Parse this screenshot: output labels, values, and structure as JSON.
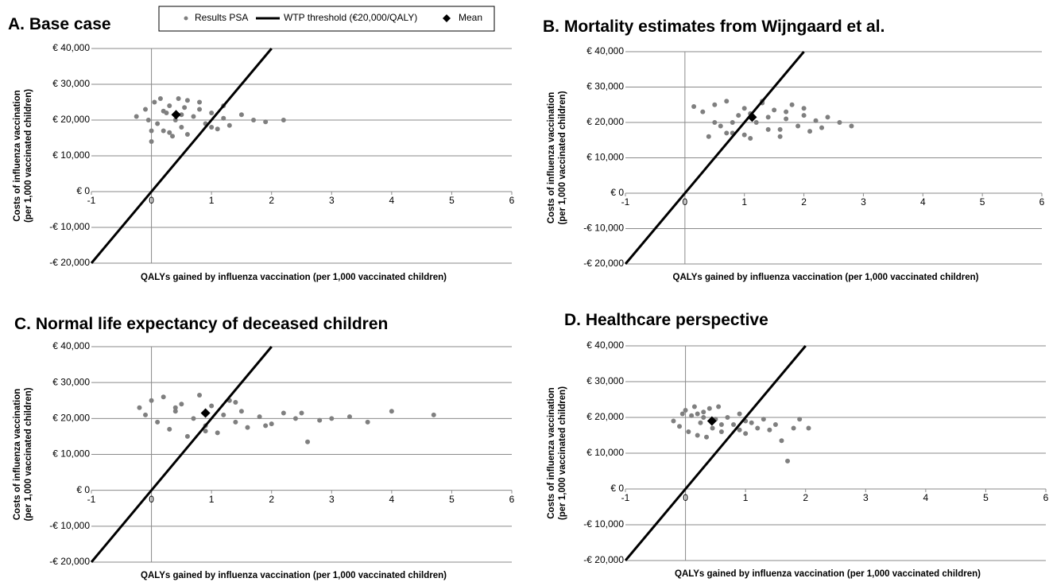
{
  "chart_data": [
    {
      "type": "scatter",
      "title": "A. Base case",
      "xlabel": "QALYs gained by influenza vaccination (per 1,000 vaccinated children)",
      "ylabel": [
        "Costs of influenza vaccination",
        "(per 1,000 vaccinated children)"
      ],
      "xlim": [
        -1,
        6
      ],
      "xticks": [
        -1,
        0,
        1,
        2,
        3,
        4,
        5,
        6
      ],
      "ylim": [
        -20000,
        40000
      ],
      "yticks": [
        {
          "value": -20000,
          "label": "-€ 20,000"
        },
        {
          "value": -10000,
          "label": "-€ 10,000"
        },
        {
          "value": 0,
          "label": "€ 0"
        },
        {
          "value": 10000,
          "label": "€ 10,000"
        },
        {
          "value": 20000,
          "label": "€ 20,000"
        },
        {
          "value": 30000,
          "label": "€ 30,000"
        },
        {
          "value": 40000,
          "label": "€ 40,000"
        }
      ],
      "grid": true,
      "series": [
        {
          "name": "Results PSA",
          "style": "points",
          "color": "#7f7f7f",
          "x": [
            -0.25,
            -0.1,
            0,
            0.05,
            0.1,
            0.15,
            0.2,
            0.25,
            0.3,
            0.35,
            0.4,
            0.45,
            0.5,
            0.55,
            0.6,
            0.7,
            0.8,
            0.9,
            1.0,
            1.1,
            1.2,
            1.3,
            1.5,
            1.7,
            1.9,
            2.2,
            -0.05,
            0.2,
            0.5,
            0.8,
            0.0,
            0.3,
            0.6,
            1.0,
            1.2
          ],
          "values": [
            21000,
            23000,
            14000,
            25000,
            19000,
            26000,
            17000,
            22000,
            24000,
            15500,
            20000,
            26000,
            18000,
            23500,
            16000,
            21000,
            25000,
            19000,
            22000,
            17500,
            20500,
            18500,
            21500,
            20000,
            19500,
            20000,
            20000,
            22500,
            21500,
            23000,
            17000,
            16500,
            25500,
            18000,
            24000
          ]
        },
        {
          "name": "WTP threshold (€20,000/QALY)",
          "style": "line",
          "color": "#000000",
          "x": [
            -1,
            2
          ],
          "values": [
            -20000,
            40000
          ]
        },
        {
          "name": "Mean",
          "style": "diamond",
          "color": "#000000",
          "x": [
            0.41
          ],
          "values": [
            21500
          ]
        }
      ]
    },
    {
      "type": "scatter",
      "title": "B. Mortality estimates from Wijngaard et al.",
      "xlabel": "QALYs gained by influenza vaccination (per 1,000 vaccinated children)",
      "ylabel": [
        "Costs of influenza vaccination",
        "(per 1,000 vaccinated children)"
      ],
      "xlim": [
        -1,
        6
      ],
      "xticks": [
        -1,
        0,
        1,
        2,
        3,
        4,
        5,
        6
      ],
      "ylim": [
        -20000,
        40000
      ],
      "yticks": [
        {
          "value": -20000,
          "label": "-€ 20,000"
        },
        {
          "value": -10000,
          "label": "-€ 10,000"
        },
        {
          "value": 0,
          "label": "€ 0"
        },
        {
          "value": 10000,
          "label": "€ 10,000"
        },
        {
          "value": 20000,
          "label": "€ 20,000"
        },
        {
          "value": 30000,
          "label": "€ 30,000"
        },
        {
          "value": 40000,
          "label": "€ 40,000"
        }
      ],
      "grid": true,
      "series": [
        {
          "style": "points",
          "color": "#7f7f7f",
          "x": [
            0.15,
            0.3,
            0.4,
            0.5,
            0.6,
            0.7,
            0.8,
            0.9,
            1.0,
            1.1,
            1.2,
            1.3,
            1.4,
            1.5,
            1.6,
            1.7,
            1.8,
            1.9,
            2.0,
            2.1,
            2.2,
            2.3,
            2.4,
            2.6,
            2.8,
            0.5,
            0.8,
            1.1,
            1.4,
            1.7,
            0.7,
            1.0,
            1.3,
            1.6,
            2.0
          ],
          "values": [
            24500,
            23000,
            16000,
            25000,
            19000,
            26000,
            17000,
            22000,
            24000,
            15500,
            20000,
            26000,
            18000,
            23500,
            16000,
            21000,
            25000,
            19000,
            22000,
            17500,
            20500,
            18500,
            21500,
            20000,
            19000,
            20000,
            20000,
            22500,
            21500,
            23000,
            17000,
            16500,
            25500,
            18000,
            24000
          ]
        },
        {
          "style": "line",
          "color": "#000000",
          "x": [
            -1,
            2
          ],
          "values": [
            -20000,
            40000
          ]
        },
        {
          "style": "diamond",
          "color": "#000000",
          "x": [
            1.13
          ],
          "values": [
            21500
          ]
        }
      ]
    },
    {
      "type": "scatter",
      "title": "C. Normal life expectancy of deceased children",
      "xlabel": "QALYs gained by influenza vaccination (per 1,000 vaccinated children)",
      "ylabel": [
        "Costs of influenza vaccination",
        "(per 1,000 vaccinated children)"
      ],
      "xlim": [
        -1,
        6
      ],
      "xticks": [
        -1,
        0,
        1,
        2,
        3,
        4,
        5,
        6
      ],
      "ylim": [
        -20000,
        40000
      ],
      "yticks": [
        {
          "value": -20000,
          "label": "-€ 20,000"
        },
        {
          "value": -10000,
          "label": "-€ 10,000"
        },
        {
          "value": 0,
          "label": "€ 0"
        },
        {
          "value": 10000,
          "label": "€ 10,000"
        },
        {
          "value": 20000,
          "label": "€ 20,000"
        },
        {
          "value": 30000,
          "label": "€ 30,000"
        },
        {
          "value": 40000,
          "label": "€ 40,000"
        }
      ],
      "grid": true,
      "series": [
        {
          "style": "points",
          "color": "#7f7f7f",
          "x": [
            -0.2,
            -0.1,
            0,
            0.1,
            0.2,
            0.3,
            0.4,
            0.5,
            0.6,
            0.7,
            0.8,
            0.9,
            1.0,
            1.1,
            1.2,
            1.3,
            1.4,
            1.5,
            1.6,
            1.8,
            2.0,
            2.2,
            2.4,
            2.6,
            2.8,
            3.0,
            3.3,
            3.6,
            4.0,
            4.7,
            0.4,
            0.9,
            1.4,
            1.9,
            2.5
          ],
          "values": [
            23000,
            21000,
            25000,
            19000,
            26000,
            17000,
            22000,
            24000,
            15000,
            20000,
            26500,
            18000,
            23500,
            16000,
            21000,
            25000,
            19000,
            22000,
            17500,
            20500,
            18500,
            21500,
            20000,
            13500,
            19500,
            20000,
            20500,
            19000,
            22000,
            21000,
            23000,
            16500,
            24500,
            18000,
            21500
          ]
        },
        {
          "style": "line",
          "color": "#000000",
          "x": [
            -1,
            2
          ],
          "values": [
            -20000,
            40000
          ]
        },
        {
          "style": "diamond",
          "color": "#000000",
          "x": [
            0.9
          ],
          "values": [
            21500
          ]
        }
      ]
    },
    {
      "type": "scatter",
      "title": "D. Healthcare perspective",
      "xlabel": "QALYs gained by influenza vaccination (per 1,000 vaccinated children)",
      "ylabel": [
        "Costs of influenza vaccination",
        "(per 1,000 vaccinated children)"
      ],
      "xlim": [
        -1,
        6
      ],
      "xticks": [
        -1,
        0,
        1,
        2,
        3,
        4,
        5,
        6
      ],
      "ylim": [
        -20000,
        40000
      ],
      "yticks": [
        {
          "value": -20000,
          "label": "-€ 20,000"
        },
        {
          "value": -10000,
          "label": "-€ 10,000"
        },
        {
          "value": 0,
          "label": "€ 0"
        },
        {
          "value": 10000,
          "label": "€ 10,000"
        },
        {
          "value": 20000,
          "label": "€ 20,000"
        },
        {
          "value": 30000,
          "label": "€ 30,000"
        },
        {
          "value": 40000,
          "label": "€ 40,000"
        }
      ],
      "grid": true,
      "series": [
        {
          "style": "points",
          "color": "#7f7f7f",
          "x": [
            -0.2,
            -0.1,
            -0.05,
            0,
            0.05,
            0.1,
            0.15,
            0.2,
            0.25,
            0.3,
            0.35,
            0.4,
            0.45,
            0.5,
            0.55,
            0.6,
            0.7,
            0.8,
            0.9,
            1.0,
            1.1,
            1.2,
            1.3,
            1.4,
            1.5,
            1.6,
            1.7,
            1.8,
            1.9,
            2.05,
            0.3,
            0.6,
            0.9,
            0.2,
            1.0
          ],
          "values": [
            19000,
            17500,
            21000,
            22000,
            16000,
            20500,
            23000,
            15000,
            18500,
            21500,
            14500,
            22500,
            17000,
            19500,
            23000,
            16000,
            20000,
            18000,
            21000,
            15500,
            18500,
            17000,
            19500,
            16500,
            18000,
            13500,
            7800,
            17000,
            19500,
            17000,
            20000,
            18000,
            16500,
            21000,
            19000
          ]
        },
        {
          "style": "line",
          "color": "#000000",
          "x": [
            -1,
            2
          ],
          "values": [
            -20000,
            40000
          ]
        },
        {
          "style": "diamond",
          "color": "#000000",
          "x": [
            0.44
          ],
          "values": [
            19000
          ]
        }
      ]
    }
  ]
}
